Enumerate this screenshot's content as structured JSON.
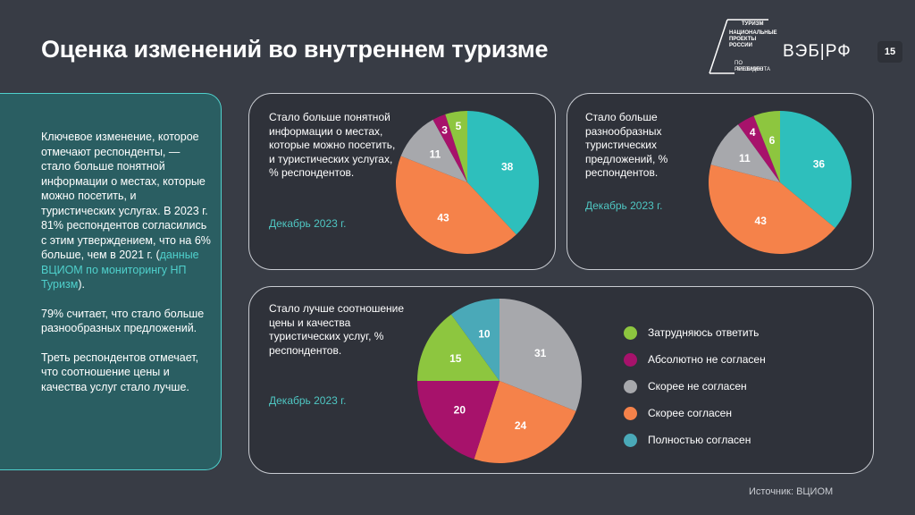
{
  "header": {
    "title": "Оценка изменений во внутреннем туризме",
    "natproj_lines": [
      "ТУРИЗМ",
      "НАЦИОНАЛЬНЫЕ",
      "ПРОЕКТЫ",
      "РОССИИ",
      "ПО РЕШЕНИЮ",
      "ПРЕЗИДЕНТА"
    ],
    "veb_logo": "ВЭБ|РФ",
    "page_number": "15"
  },
  "left_panel": {
    "p1_text": "Ключевое изменение, которое отмечают респонденты, — стало больше понятной информации о местах, которые можно посетить, и туристических услугах. В 2023 г. 81% респондентов согласились с этим утверждением, что на 6% больше, чем в 2021 г. (",
    "p1_link": "данные ВЦИОМ по мониторингу НП Туризм",
    "p1_end": ").",
    "p2": "79% считает, что стало больше разнообразных предложений.",
    "p3": "Треть респондентов отмечает, что соотношение цены и качества услуг стало лучше."
  },
  "colors": {
    "fully_agree": "#2ebfbc",
    "rather_agree": "#f5824a",
    "rather_disagree": "#a7a8ac",
    "absolutely_disagree": "#a7126b",
    "hard_to_say": "#8dc63f"
  },
  "chart_data": [
    {
      "type": "pie",
      "title": "Стало больше понятной информации о местах, которые можно посетить, и туристических услугах, % респондентов.",
      "subtitle": "Декабрь 2023 г.",
      "categories": [
        "Полностью согласен",
        "Скорее согласен",
        "Скорее не согласен",
        "Абсолютно не согласен",
        "Затрудняюсь ответить"
      ],
      "values": [
        38,
        43,
        11,
        3,
        5
      ]
    },
    {
      "type": "pie",
      "title": "Стало больше разнообразных туристических предложений, % респондентов.",
      "subtitle": "Декабрь 2023 г.",
      "categories": [
        "Полностью согласен",
        "Скорее согласен",
        "Скорее не согласен",
        "Абсолютно не согласен",
        "Затрудняюсь ответить"
      ],
      "values": [
        36,
        43,
        11,
        4,
        6
      ]
    },
    {
      "type": "pie",
      "title": "Стало лучше соотношение цены и качества туристических услуг, % респондентов.",
      "subtitle": "Декабрь 2023 г.",
      "categories": [
        "Скорее не согласен",
        "Скорее согласен",
        "Абсолютно не согласен",
        "Затрудняюсь ответить",
        "Полностью согласен"
      ],
      "values": [
        31,
        24,
        20,
        15,
        10
      ]
    }
  ],
  "legend": [
    {
      "label": "Затрудняюсь ответить",
      "color": "#8dc63f"
    },
    {
      "label": "Абсолютно не согласен",
      "color": "#a7126b"
    },
    {
      "label": "Скорее не согласен",
      "color": "#a7a8ac"
    },
    {
      "label": "Скорее согласен",
      "color": "#f5824a"
    },
    {
      "label": "Полностью согласен",
      "color": "#4aa9b8"
    }
  ],
  "pie_colors": [
    [
      "#2ebfbc",
      "#f5824a",
      "#a7a8ac",
      "#a7126b",
      "#8dc63f"
    ],
    [
      "#2ebfbc",
      "#f5824a",
      "#a7a8ac",
      "#a7126b",
      "#8dc63f"
    ],
    [
      "#a7a8ac",
      "#f5824a",
      "#a7126b",
      "#8dc63f",
      "#4aa9b8"
    ]
  ],
  "source": "Источник: ВЦИОМ"
}
